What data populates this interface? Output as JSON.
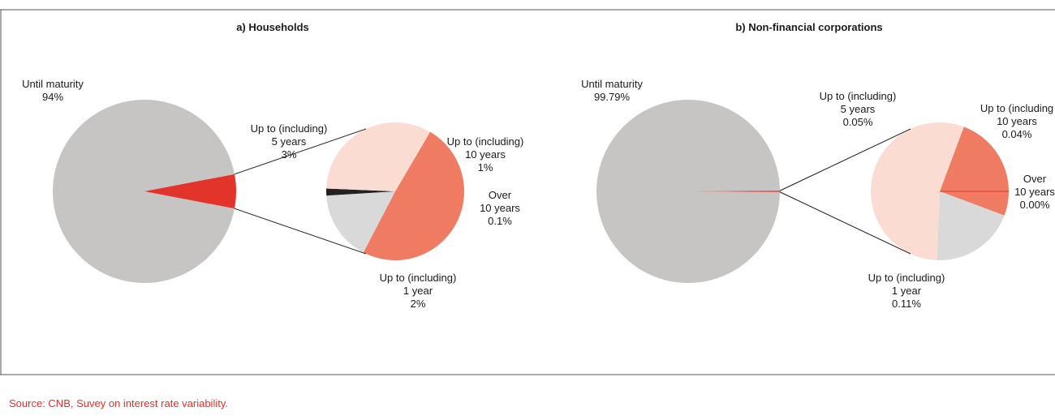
{
  "source": "Source: CNB, Suvey on interest rate variability.",
  "chart_data": [
    {
      "type": "pie",
      "title": "a) Households",
      "main_pie": {
        "slices": [
          {
            "label": [
              "Until maturity",
              "94%"
            ],
            "value": 94,
            "color": "#c6c5c4"
          },
          {
            "label": [],
            "value": 6,
            "color": "#e3342b"
          }
        ]
      },
      "detail_pie": {
        "slices": [
          {
            "label": [
              "Up to (including)",
              "5 years",
              "3%"
            ],
            "value": 3,
            "color": "#ef7c62"
          },
          {
            "label": [
              "Up to (including)",
              "10 years",
              "1%"
            ],
            "value": 1,
            "color": "#d9d9d9"
          },
          {
            "label": [
              "Over",
              "10 years",
              "0.1%"
            ],
            "value": 0.1,
            "color": "#222222"
          },
          {
            "label": [
              "Up to (including)",
              "1 year",
              "2%"
            ],
            "value": 2,
            "color": "#fbdcd2"
          }
        ]
      }
    },
    {
      "type": "pie",
      "title": "b) Non-financial corporations",
      "main_pie": {
        "slices": [
          {
            "label": [
              "Until maturity",
              "99.79%"
            ],
            "value": 99.79,
            "color": "#c6c5c4"
          },
          {
            "label": [],
            "value": 0.21,
            "color": "#e3342b"
          }
        ]
      },
      "detail_pie": {
        "slices": [
          {
            "label": [
              "Up to (including)",
              "5 years",
              "0.05%"
            ],
            "value": 0.05,
            "color": "#ef7c62"
          },
          {
            "label": [
              "Up to (including",
              "10 years",
              "0.04%"
            ],
            "value": 0.04,
            "color": "#d9d9d9"
          },
          {
            "label": [
              "Over",
              "10 years",
              "0.00%"
            ],
            "value": 0.0,
            "color": "#222222"
          },
          {
            "label": [
              "Up to (including)",
              "1 year",
              "0.11%"
            ],
            "value": 0.11,
            "color": "#fbdcd2"
          }
        ]
      }
    }
  ]
}
